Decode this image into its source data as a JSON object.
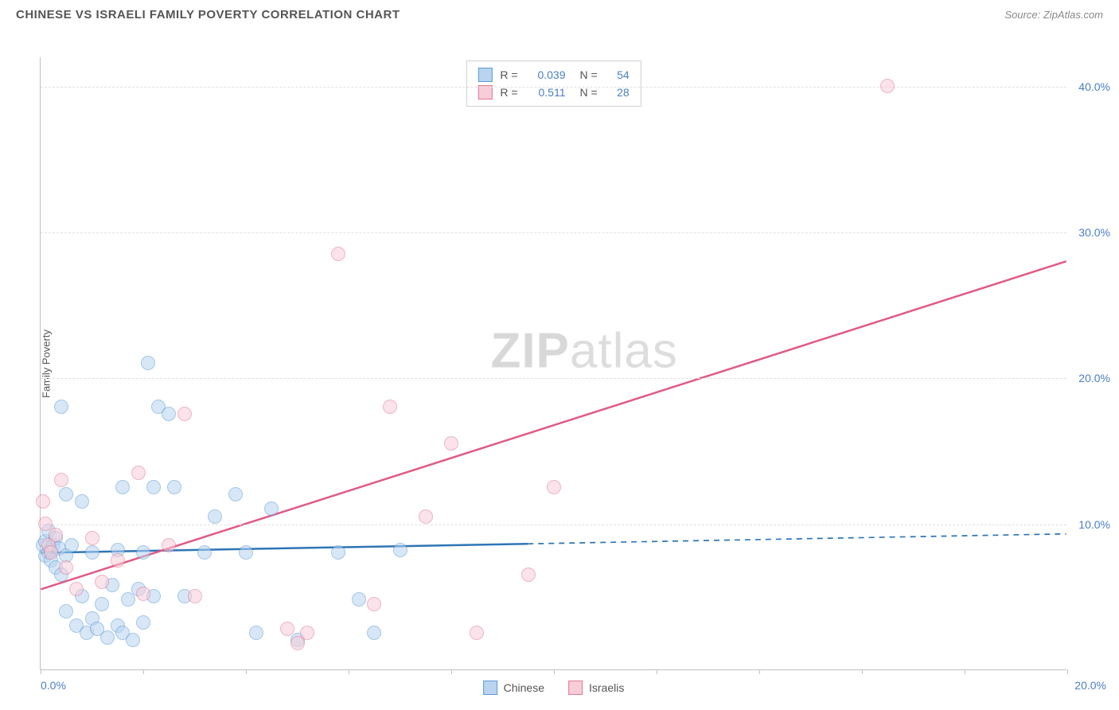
{
  "title": "CHINESE VS ISRAELI FAMILY POVERTY CORRELATION CHART",
  "source": "Source: ZipAtlas.com",
  "ylabel": "Family Poverty",
  "watermark_bold": "ZIP",
  "watermark_rest": "atlas",
  "chart": {
    "type": "scatter",
    "xlim": [
      0,
      20
    ],
    "ylim": [
      0,
      42
    ],
    "xtick_positions": [
      0,
      2,
      4,
      6,
      8,
      10,
      12,
      14,
      16,
      18,
      20
    ],
    "xtick_labels": {
      "0": "0.0%",
      "20": "20.0%"
    },
    "ytick_positions": [
      10,
      20,
      30,
      40
    ],
    "ytick_labels": {
      "10": "10.0%",
      "20": "20.0%",
      "30": "30.0%",
      "40": "40.0%"
    },
    "grid_color": "#e0e0e0",
    "axis_color": "#c0c0c0",
    "background_color": "#ffffff",
    "tick_label_color": "#4a7fc4",
    "marker_radius": 9,
    "marker_border_width": 1.5,
    "series": [
      {
        "name": "Chinese",
        "fill": "#b8d4f0",
        "stroke": "#5b9bd5",
        "fill_opacity": 0.55,
        "R": "0.039",
        "N": "54",
        "trend": {
          "y_at_x0": 8.0,
          "y_at_xmax": 9.3,
          "solid_until_x": 9.5,
          "color": "#2e75b6",
          "width": 2.5
        },
        "points": [
          [
            0.05,
            8.5
          ],
          [
            0.1,
            7.8
          ],
          [
            0.1,
            8.8
          ],
          [
            0.15,
            8.0
          ],
          [
            0.15,
            9.5
          ],
          [
            0.2,
            7.5
          ],
          [
            0.2,
            8.2
          ],
          [
            0.25,
            8.5
          ],
          [
            0.3,
            7.0
          ],
          [
            0.3,
            9.0
          ],
          [
            0.35,
            8.3
          ],
          [
            0.4,
            18.0
          ],
          [
            0.4,
            6.5
          ],
          [
            0.5,
            12.0
          ],
          [
            0.5,
            4.0
          ],
          [
            0.5,
            7.8
          ],
          [
            0.6,
            8.5
          ],
          [
            0.7,
            3.0
          ],
          [
            0.8,
            5.0
          ],
          [
            0.8,
            11.5
          ],
          [
            0.9,
            2.5
          ],
          [
            1.0,
            8.0
          ],
          [
            1.0,
            3.5
          ],
          [
            1.1,
            2.8
          ],
          [
            1.2,
            4.5
          ],
          [
            1.3,
            2.2
          ],
          [
            1.4,
            5.8
          ],
          [
            1.5,
            8.2
          ],
          [
            1.5,
            3.0
          ],
          [
            1.6,
            2.5
          ],
          [
            1.6,
            12.5
          ],
          [
            1.7,
            4.8
          ],
          [
            1.8,
            2.0
          ],
          [
            1.9,
            5.5
          ],
          [
            2.0,
            8.0
          ],
          [
            2.0,
            3.2
          ],
          [
            2.1,
            21.0
          ],
          [
            2.2,
            12.5
          ],
          [
            2.2,
            5.0
          ],
          [
            2.3,
            18.0
          ],
          [
            2.5,
            17.5
          ],
          [
            2.6,
            12.5
          ],
          [
            2.8,
            5.0
          ],
          [
            3.2,
            8.0
          ],
          [
            3.4,
            10.5
          ],
          [
            3.8,
            12.0
          ],
          [
            4.0,
            8.0
          ],
          [
            4.2,
            2.5
          ],
          [
            4.5,
            11.0
          ],
          [
            5.0,
            2.0
          ],
          [
            5.8,
            8.0
          ],
          [
            6.2,
            4.8
          ],
          [
            6.5,
            2.5
          ],
          [
            7.0,
            8.2
          ]
        ]
      },
      {
        "name": "Israelis",
        "fill": "#f7cdd9",
        "stroke": "#e37795",
        "fill_opacity": 0.55,
        "R": "0.511",
        "N": "28",
        "trend": {
          "y_at_x0": 5.5,
          "y_at_xmax": 28.0,
          "solid_until_x": 20,
          "color": "#e05a85",
          "width": 2.5
        },
        "points": [
          [
            0.05,
            11.5
          ],
          [
            0.1,
            10.0
          ],
          [
            0.15,
            8.5
          ],
          [
            0.2,
            8.0
          ],
          [
            0.3,
            9.2
          ],
          [
            0.4,
            13.0
          ],
          [
            0.5,
            7.0
          ],
          [
            0.7,
            5.5
          ],
          [
            1.0,
            9.0
          ],
          [
            1.2,
            6.0
          ],
          [
            1.5,
            7.5
          ],
          [
            1.9,
            13.5
          ],
          [
            2.0,
            5.2
          ],
          [
            2.5,
            8.5
          ],
          [
            2.8,
            17.5
          ],
          [
            3.0,
            5.0
          ],
          [
            4.8,
            2.8
          ],
          [
            5.0,
            1.8
          ],
          [
            5.2,
            2.5
          ],
          [
            5.8,
            28.5
          ],
          [
            6.5,
            4.5
          ],
          [
            6.8,
            18.0
          ],
          [
            7.5,
            10.5
          ],
          [
            8.0,
            15.5
          ],
          [
            8.5,
            2.5
          ],
          [
            9.5,
            6.5
          ],
          [
            10.0,
            12.5
          ],
          [
            16.5,
            40.0
          ]
        ]
      }
    ]
  },
  "legend_bottom": [
    {
      "label": "Chinese",
      "fill": "#b8d4f0",
      "stroke": "#5b9bd5"
    },
    {
      "label": "Israelis",
      "fill": "#f7cdd9",
      "stroke": "#e37795"
    }
  ]
}
